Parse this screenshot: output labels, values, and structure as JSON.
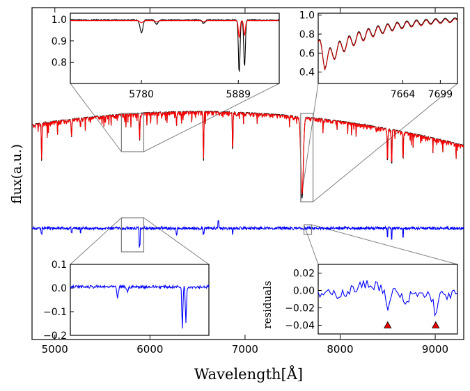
{
  "chart_data": {
    "type": "line",
    "xlabel": "Wavelength[Å]",
    "ylabel": "flux(a.u.)",
    "xlim": [
      4760,
      9300
    ],
    "x_ticks": [
      5000,
      6000,
      7000,
      8000,
      9000
    ],
    "series": [
      {
        "color": "#000000",
        "role": "observed spectrum"
      },
      {
        "color": "#ff0000",
        "role": "model spectrum"
      },
      {
        "color": "#0000ff",
        "role": "residuals"
      }
    ],
    "absorption_lines": [
      {
        "x": 4861,
        "depth": 0.45
      },
      {
        "x": 5175,
        "depth": 0.22
      },
      {
        "x": 5270,
        "depth": 0.12
      },
      {
        "x": 5892,
        "depth": 0.32
      },
      {
        "x": 6280,
        "depth": 0.14
      },
      {
        "x": 6563,
        "depth": 0.55
      },
      {
        "x": 6870,
        "depth": 0.45
      },
      {
        "x": 7600,
        "depth": 0.95
      },
      {
        "x": 8498,
        "depth": 0.38
      },
      {
        "x": 8542,
        "depth": 0.45
      },
      {
        "x": 8662,
        "depth": 0.35
      }
    ],
    "insets": [
      {
        "id": "na-d-model",
        "xlim": [
          5700,
          5935
        ],
        "ylim": [
          0.7,
          1.03
        ],
        "x_ticks": [
          5780,
          5889
        ],
        "y_ticks": [
          0.8,
          0.9,
          1.0
        ],
        "y_tick_labels": [
          "0.8",
          "0.9",
          "1.0"
        ],
        "features": [
          {
            "x": 5780,
            "black_depth": 0.06,
            "red_depth": 0.01
          },
          {
            "x": 5797,
            "black_depth": 0.02,
            "red_depth": 0.005
          },
          {
            "x": 5850,
            "black_depth": 0.015,
            "red_depth": 0.005
          },
          {
            "x": 5890,
            "black_depth": 0.25,
            "red_depth": 0.08
          },
          {
            "x": 5896,
            "black_depth": 0.22,
            "red_depth": 0.07
          }
        ]
      },
      {
        "id": "telluric-band-model",
        "xlim": [
          7585,
          7715
        ],
        "ylim": [
          0.28,
          1.02
        ],
        "x_ticks": [
          7664,
          7699
        ],
        "y_ticks": [
          0.4,
          0.6,
          0.8,
          1.0
        ],
        "y_tick_labels": [
          "0.4",
          "0.6",
          "0.8",
          "1.0"
        ]
      },
      {
        "id": "na-d-residuals",
        "xlim": [
          5700,
          5935
        ],
        "ylim": [
          -0.2,
          0.1
        ],
        "x_ticks": [],
        "y_ticks": [
          0.1,
          0.0,
          -0.1,
          -0.2
        ],
        "y_tick_labels": [
          "0.1",
          "0.0",
          "−0.1",
          "−0.2"
        ]
      },
      {
        "id": "red-end-residuals",
        "ylabel": "residuals",
        "xlim": [
          7700,
          9300
        ],
        "ylim": [
          -0.05,
          0.03
        ],
        "x_ticks": [],
        "y_ticks": [
          0.02,
          0.0,
          -0.02,
          -0.04
        ],
        "y_tick_labels": [
          "0.02",
          "0.00",
          "−0.02",
          "−0.04"
        ],
        "markers": [
          {
            "x": 8498,
            "y": -0.04,
            "shape": "triangle",
            "color": "#ee0000"
          },
          {
            "x": 9050,
            "y": -0.04,
            "shape": "triangle",
            "color": "#ee0000"
          }
        ]
      }
    ]
  }
}
